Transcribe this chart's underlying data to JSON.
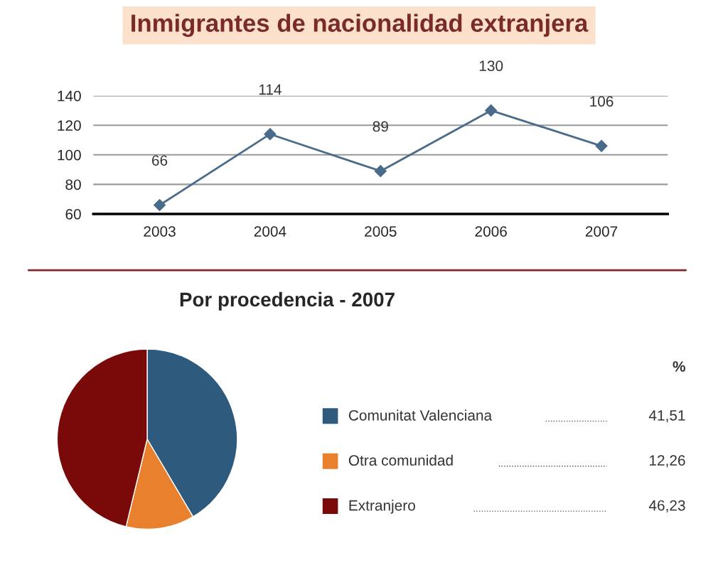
{
  "chart_data": [
    {
      "type": "line",
      "title": "Inmigrantes de nacionalidad extranjera",
      "categories": [
        "2003",
        "2004",
        "2005",
        "2006",
        "2007"
      ],
      "series": [
        {
          "color": "#4a6b8a",
          "values": [
            66,
            114,
            89,
            130,
            106
          ]
        }
      ],
      "ylim": [
        60,
        140
      ],
      "yticks": [
        60,
        80,
        100,
        120,
        140
      ],
      "grid": "y",
      "marker": "diamond",
      "line_style": "solid",
      "data_labels": true,
      "legend": false
    },
    {
      "type": "pie",
      "title": "Por procedencia - 2007",
      "legend_title": "%",
      "legend": "right",
      "categories": [
        "Comunitat Valenciana",
        "Otra comunidad",
        "Extranjero"
      ],
      "values": [
        41.51,
        12.26,
        46.23
      ],
      "value_labels": [
        "41,51",
        "12,26",
        "46,23"
      ],
      "colors": [
        "#2e5a7e",
        "#e8802e",
        "#7a0a0a"
      ]
    }
  ]
}
